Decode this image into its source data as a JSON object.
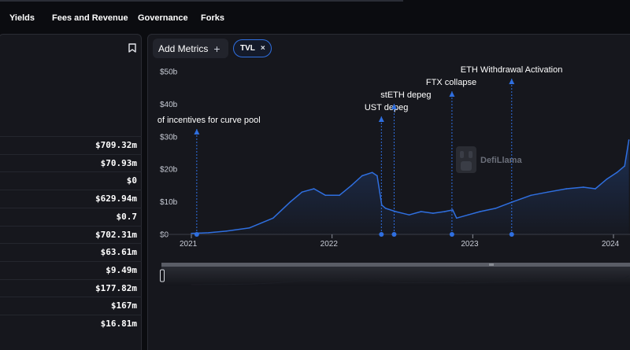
{
  "nav": {
    "tabs": [
      "Yields",
      "Fees and Revenue",
      "Governance",
      "Forks"
    ]
  },
  "stats": {
    "values": [
      "$709.32m",
      "$70.93m",
      "$0",
      "$629.94m",
      "$0.7",
      "$702.31m",
      "$63.61m",
      "$9.49m",
      "$177.82m",
      "$167m",
      "$16.81m"
    ]
  },
  "icons": {
    "bookmark": "bookmark-icon",
    "add": "plus-icon",
    "remove": "close-icon",
    "brush_grip": "grip-icon",
    "watermark": "defillama-logo"
  },
  "toolbar": {
    "add_metrics_label": "Add Metrics",
    "add_icon": "+",
    "selected_metric": "TVL",
    "remove_icon": "×"
  },
  "watermark": {
    "text": "DefiLlama"
  },
  "colors": {
    "line": "#2f6fe0",
    "accent": "#2f6fe0",
    "background": "#0b0c10",
    "panel": "#16171d"
  },
  "chart_data": {
    "type": "area",
    "series": [
      {
        "name": "TVL",
        "x": [
          "2021-01-01",
          "2021-02-15",
          "2021-04-01",
          "2021-06-01",
          "2021-08-01",
          "2021-09-15",
          "2021-10-15",
          "2021-11-15",
          "2021-12-15",
          "2022-01-20",
          "2022-02-20",
          "2022-03-20",
          "2022-04-15",
          "2022-04-28",
          "2022-05-10",
          "2022-05-20",
          "2022-06-15",
          "2022-07-20",
          "2022-08-20",
          "2022-09-20",
          "2022-10-20",
          "2022-11-10",
          "2022-11-20",
          "2022-12-20",
          "2023-01-20",
          "2023-03-01",
          "2023-04-15",
          "2023-06-01",
          "2023-07-15",
          "2023-09-01",
          "2023-10-15",
          "2023-11-15",
          "2023-12-15",
          "2024-01-10",
          "2024-01-30",
          "2024-02-10"
        ],
        "values": [
          0.3,
          0.5,
          1,
          2,
          5,
          10,
          13,
          14,
          12,
          12,
          15,
          18,
          19,
          18,
          9,
          8,
          7,
          6,
          7,
          6.5,
          7,
          7.5,
          5,
          6,
          7,
          8,
          10,
          12,
          13,
          14,
          14.5,
          14,
          17,
          19,
          21,
          29
        ]
      }
    ],
    "yticks": [
      "$0",
      "$10b",
      "$20b",
      "$30b",
      "$40b",
      "$50b"
    ],
    "ytick_values": [
      0,
      10,
      20,
      30,
      40,
      50
    ],
    "xticks": [
      "2021",
      "2022",
      "2023",
      "2024"
    ],
    "xtick_dates": [
      "2021-01-01",
      "2022-01-01",
      "2023-01-01",
      "2024-01-01"
    ],
    "ylim": [
      0,
      50
    ],
    "annotations": [
      {
        "label": "of incentives for curve pool",
        "date": "2021-01-15"
      },
      {
        "label": "UST depeg",
        "date": "2022-05-09"
      },
      {
        "label": "stETH depeg",
        "date": "2022-06-11"
      },
      {
        "label": "FTX collapse",
        "date": "2022-11-08"
      },
      {
        "label": "ETH Withdrawal Activation",
        "date": "2023-04-12"
      }
    ],
    "grid": false,
    "legend": "none"
  }
}
